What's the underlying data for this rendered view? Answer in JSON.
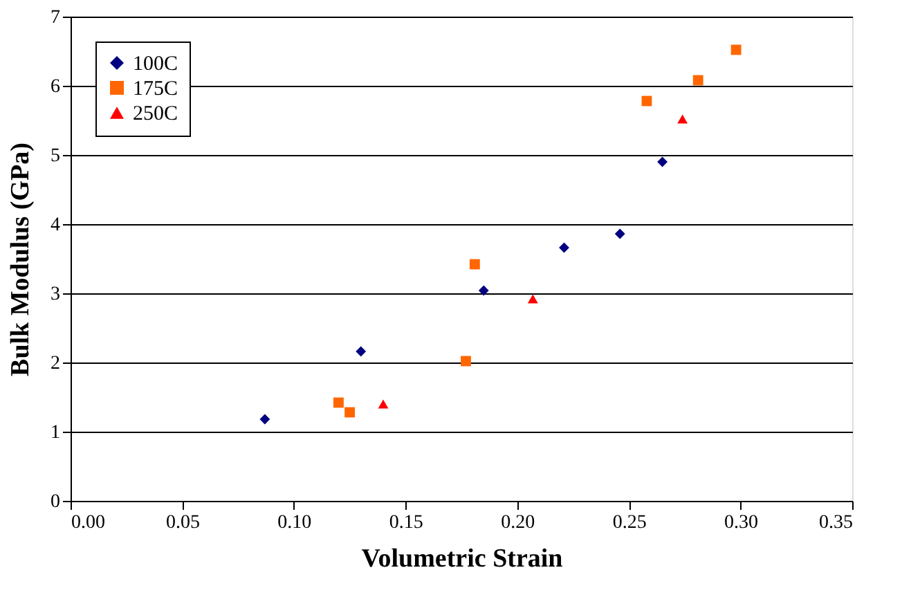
{
  "chart_data": {
    "type": "scatter",
    "xlabel": "Volumetric Strain",
    "ylabel": "Bulk Modulus (GPa)",
    "xlim": [
      0,
      0.35
    ],
    "xticks": [
      {
        "value": 0,
        "label": "0.00"
      },
      0.05,
      {
        "value": 0.1,
        "label": "0.10"
      },
      0.15,
      {
        "value": 0.2,
        "label": "0.20"
      },
      0.25,
      {
        "value": 0.3,
        "label": "0.30"
      },
      0.35
    ],
    "ylim": [
      0,
      7
    ],
    "yticks": [
      0,
      1,
      2,
      3,
      4,
      5,
      6,
      7
    ],
    "grid": "y",
    "legend": "top left",
    "series": [
      {
        "name": "100C",
        "color": "#000080",
        "marker": "diamond",
        "x": [
          0.087,
          0.13,
          0.185,
          0.221,
          0.246,
          0.265
        ],
        "values": [
          1.18,
          2.16,
          3.04,
          3.66,
          3.86,
          4.9
        ]
      },
      {
        "name": "175C",
        "color": "#ff6600",
        "marker": "square",
        "x": [
          0.12,
          0.125,
          0.177,
          0.181,
          0.258,
          0.281,
          0.298
        ],
        "values": [
          1.42,
          1.28,
          2.02,
          3.42,
          5.78,
          6.08,
          6.52
        ]
      },
      {
        "name": "250C",
        "color": "#ff0000",
        "marker": "triangle",
        "x": [
          0.14,
          0.207,
          0.274
        ],
        "values": [
          1.4,
          2.92,
          5.52
        ]
      }
    ]
  }
}
